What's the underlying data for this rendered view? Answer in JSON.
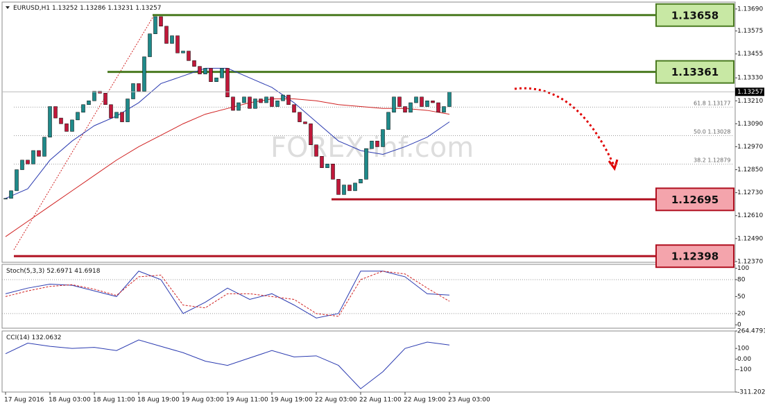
{
  "chart_data": [
    {
      "type": "candlestick",
      "title": "EURUSD,H1",
      "header_values": [
        1.13252,
        1.13286,
        1.13231,
        1.13257
      ],
      "categories": [
        "17 Aug 2016",
        null,
        null,
        null,
        null,
        null,
        null,
        null,
        "18 Aug 03:00",
        null,
        null,
        null,
        null,
        null,
        null,
        null,
        "18 Aug 11:00",
        null,
        null,
        null,
        null,
        null,
        null,
        null,
        "18 Aug 19:00",
        null,
        null,
        null,
        null,
        null,
        null,
        null,
        "19 Aug 03:00",
        null,
        null,
        null,
        null,
        null,
        null,
        null,
        "19 Aug 11:00",
        null,
        null,
        null,
        null,
        null,
        null,
        null,
        "19 Aug 19:00",
        null,
        null,
        null,
        null,
        null,
        null,
        null,
        "22 Aug 03:00",
        null,
        null,
        null,
        null,
        null,
        null,
        null,
        "22 Aug 11:00",
        null,
        null,
        null,
        null,
        null,
        null,
        null,
        "22 Aug 19:00",
        null,
        null,
        null,
        null,
        null,
        null,
        null,
        "23 Aug 03:00"
      ],
      "values": [
        1.127,
        1.1274,
        1.1285,
        1.129,
        1.1288,
        1.1295,
        1.1292,
        1.1302,
        1.1318,
        1.1312,
        1.1309,
        1.1305,
        1.1311,
        1.1315,
        1.1319,
        1.1321,
        1.1326,
        1.1325,
        1.1319,
        1.1312,
        1.1315,
        1.131,
        1.1322,
        1.133,
        1.1326,
        1.1344,
        1.1356,
        1.1365,
        1.136,
        1.1351,
        1.1355,
        1.1346,
        1.1347,
        1.1342,
        1.1339,
        1.1335,
        1.1338,
        1.1331,
        1.1333,
        1.1338,
        1.1323,
        1.1316,
        1.132,
        1.1323,
        1.1317,
        1.1322,
        1.132,
        1.1323,
        1.1318,
        1.1321,
        1.1324,
        1.1319,
        1.1315,
        1.131,
        1.1309,
        1.1298,
        1.1292,
        1.1286,
        1.1288,
        1.128,
        1.1272,
        1.1277,
        1.1274,
        1.1278,
        1.128,
        1.1296,
        1.13,
        1.1297,
        1.1306,
        1.1315,
        1.1323,
        1.1318,
        1.1315,
        1.132,
        1.1323,
        1.1318,
        1.1321,
        1.132,
        1.1315,
        1.1318,
        1.13257
      ],
      "up_color": "#1f8a8a",
      "down_color": "#c0183a",
      "moving_averages": [
        {
          "color": "#2a3ab0",
          "values": [
            1.127,
            1.1275,
            1.129,
            1.13,
            1.1308,
            1.1313,
            1.132,
            1.133,
            1.1334,
            1.1338,
            1.1338,
            1.1333,
            1.1328,
            1.132,
            1.131,
            1.13,
            1.1295,
            1.1293,
            1.1297,
            1.1302,
            1.131
          ]
        },
        {
          "color": "#d02020",
          "values": [
            1.125,
            1.1258,
            1.1266,
            1.1274,
            1.1282,
            1.129,
            1.1297,
            1.1303,
            1.1309,
            1.1314,
            1.1317,
            1.132,
            1.1322,
            1.1322,
            1.1321,
            1.1319,
            1.1318,
            1.1317,
            1.1317,
            1.1316,
            1.1314
          ]
        }
      ],
      "levels": [
        {
          "value": 1.13658,
          "color": "#4a7a20",
          "fill": "#c8e8a4"
        },
        {
          "value": 1.13361,
          "color": "#4a7a20",
          "fill": "#c8e8a4"
        },
        {
          "value": 1.12695,
          "color": "#b01020",
          "fill": "#f4a4ac"
        },
        {
          "value": 1.12398,
          "color": "#b01020",
          "fill": "#f4a4ac"
        }
      ],
      "fibonacci": [
        {
          "label": "61.8",
          "value": 1.13177
        },
        {
          "label": "50.0",
          "value": 1.13028
        },
        {
          "label": "38.2",
          "value": 1.12879
        }
      ],
      "last_price": 1.13257,
      "watermark": "FOREX-inf.com",
      "ylim": [
        1.12366,
        1.13726
      ],
      "yticks": [
        {
          "value": 1.1369,
          "label": "1.13690"
        },
        1.13575,
        1.13455,
        {
          "value": 1.1333,
          "label": "1.13330"
        },
        {
          "value": 1.1321,
          "label": "1.13210"
        },
        {
          "value": 1.1309,
          "label": "1.13090"
        },
        {
          "value": 1.1297,
          "label": "1.12970"
        },
        {
          "value": 1.1285,
          "label": "1.12850"
        },
        {
          "value": 1.1273,
          "label": "1.12730"
        },
        {
          "value": 1.1261,
          "label": "1.12610"
        },
        {
          "value": 1.1249,
          "label": "1.12490"
        },
        {
          "value": 1.1237,
          "label": "1.12370"
        }
      ]
    },
    {
      "type": "line",
      "title": "Stoch(5,3,3)",
      "header_values": [
        52.6971,
        41.6918
      ],
      "series": [
        {
          "color": "#2a3ab0",
          "dash": false,
          "values": [
            55,
            65,
            72,
            70,
            60,
            50,
            95,
            80,
            20,
            40,
            65,
            45,
            55,
            35,
            12,
            20,
            95,
            95,
            85,
            55,
            52.6971
          ]
        },
        {
          "color": "#d02020",
          "dash": true,
          "values": [
            50,
            60,
            68,
            71,
            63,
            52,
            85,
            88,
            35,
            30,
            55,
            55,
            50,
            45,
            20,
            15,
            80,
            95,
            90,
            65,
            41.6918
          ]
        }
      ],
      "levels": [
        80,
        20
      ],
      "ylim": [
        -6,
        107
      ],
      "yticks": [
        100,
        80,
        50,
        20,
        0
      ]
    },
    {
      "type": "line",
      "title": "CCI(14)",
      "header_values": [
        132.0632
      ],
      "series": [
        {
          "color": "#2a3ab0",
          "dash": false,
          "values": [
            50,
            150,
            120,
            100,
            110,
            80,
            180,
            120,
            60,
            -20,
            -60,
            10,
            80,
            20,
            30,
            -60,
            -280,
            -120,
            100,
            160,
            132.0632
          ]
        }
      ],
      "ylim": [
        -311.2024,
        264.4791
      ],
      "yticks": [
        264.4791,
        100,
        {
          "value": 0,
          "label": "0.00"
        },
        -100,
        -311.2024
      ]
    }
  ]
}
